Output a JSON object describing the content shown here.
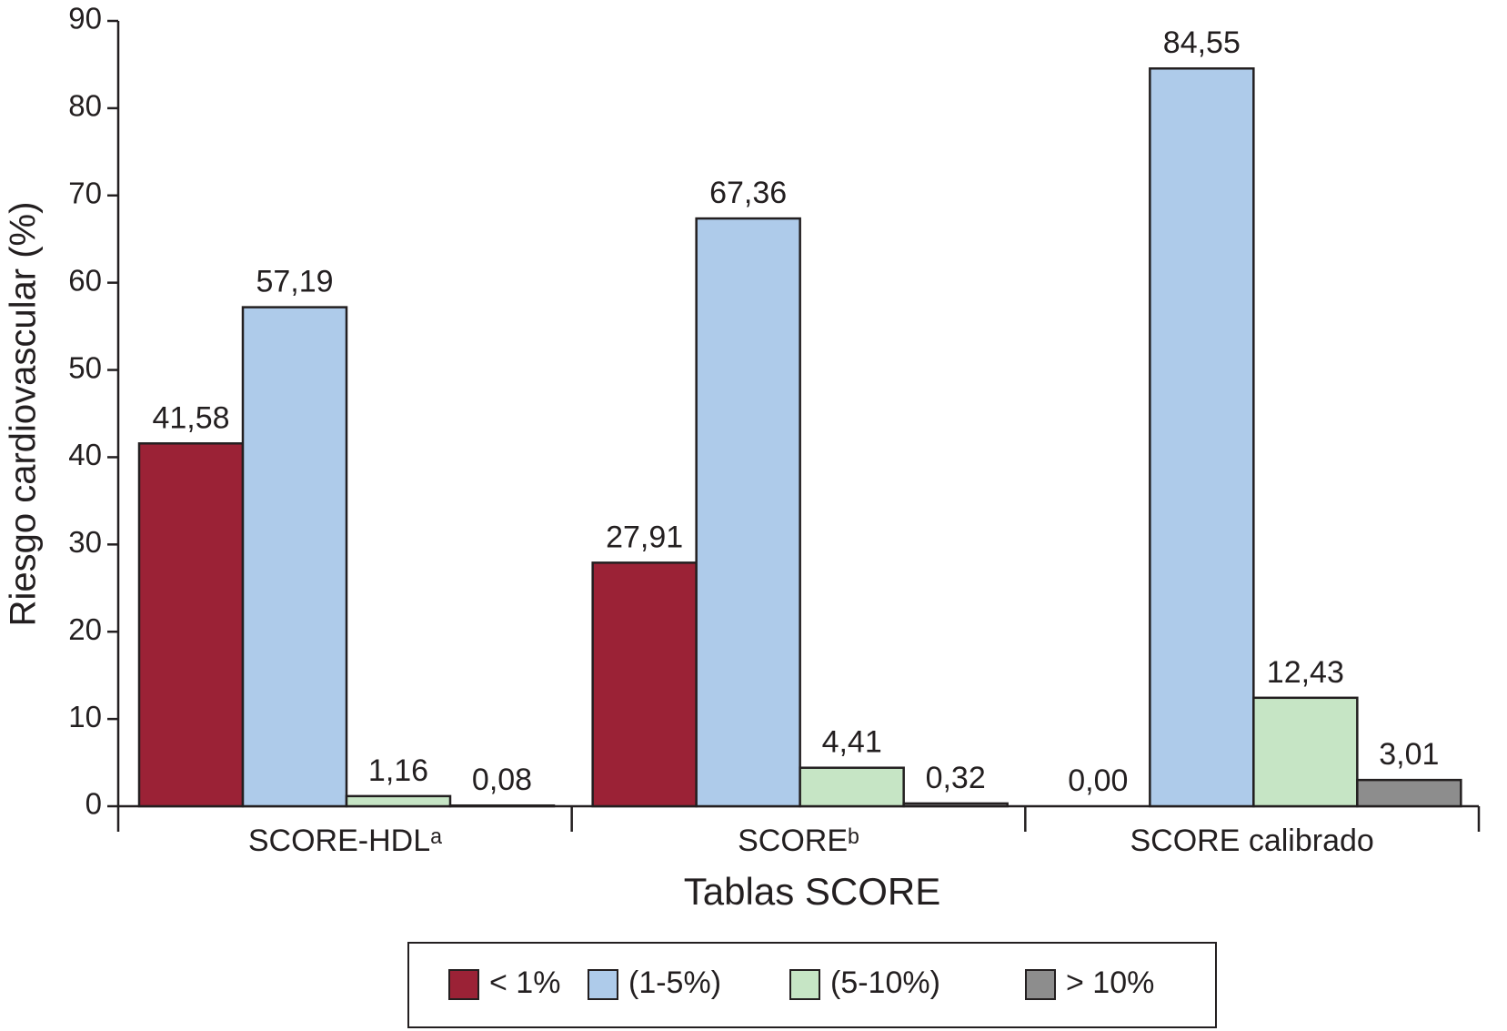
{
  "chart_data": {
    "type": "bar",
    "x_label": "Tablas SCORE",
    "y_label": "Riesgo cardiovascular (%)",
    "categories": [
      "SCORE-HDLᵃ",
      "SCOREᵇ",
      "SCORE calibrado"
    ],
    "series": [
      {
        "name": "< 1%",
        "color": "#9b2236",
        "values": [
          41.58,
          27.91,
          0.0
        ],
        "value_labels": [
          "41,58",
          "27,91",
          "0,00"
        ]
      },
      {
        "name": "(1-5%)",
        "color": "#aecbea",
        "values": [
          57.19,
          67.36,
          84.55
        ],
        "value_labels": [
          "57,19",
          "67,36",
          "84,55"
        ]
      },
      {
        "name": "(5-10%)",
        "color": "#c6e5c5",
        "values": [
          1.16,
          4.41,
          12.43
        ],
        "value_labels": [
          "1,16",
          "4,41",
          "12,43"
        ]
      },
      {
        "name": "> 10%",
        "color": "#8d8d8d",
        "values": [
          0.08,
          0.32,
          3.01
        ],
        "value_labels": [
          "0,08",
          "0,32",
          "3,01"
        ]
      }
    ],
    "ylim": [
      0,
      90
    ],
    "yticks": [
      0,
      10,
      20,
      30,
      40,
      50,
      60,
      70,
      80,
      90
    ],
    "grid": false,
    "legend": "bottom"
  }
}
